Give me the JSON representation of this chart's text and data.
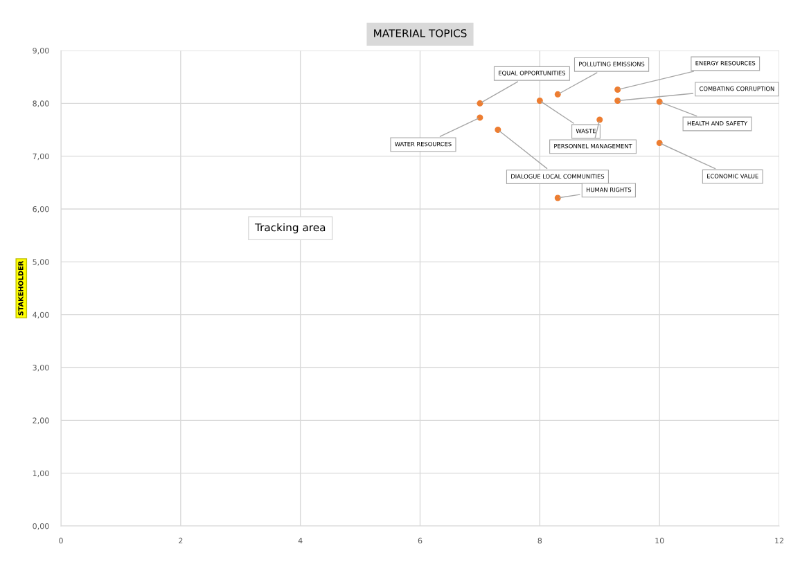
{
  "chart_data": {
    "type": "scatter",
    "title": "MATERIAL TOPICS",
    "ylabel": "STAKEHOLDER",
    "x": [
      7.0,
      7.0,
      7.3,
      8.0,
      8.3,
      9.0,
      8.3,
      9.3,
      9.3,
      10.0,
      10.0
    ],
    "series": [
      {
        "color": "#ed7d31",
        "values": [
          8.0,
          7.73,
          7.5,
          8.05,
          8.17,
          7.69,
          6.21,
          8.26,
          8.05,
          8.03,
          7.25
        ]
      }
    ],
    "marker": "circle",
    "grid": true,
    "legend": false,
    "xlim": [
      0,
      12
    ],
    "xticks": [
      0,
      2,
      4,
      6,
      8,
      10,
      12
    ],
    "ylim": [
      0,
      9
    ],
    "yticks": [
      {
        "value": 0,
        "label": "0,00"
      },
      {
        "value": 1,
        "label": "1,00"
      },
      {
        "value": 2,
        "label": "2,00"
      },
      {
        "value": 3,
        "label": "3,00"
      },
      {
        "value": 4,
        "label": "4,00"
      },
      {
        "value": 5,
        "label": "5,00"
      },
      {
        "value": 6,
        "label": "6,00"
      },
      {
        "value": 7,
        "label": "7,00"
      },
      {
        "value": 8,
        "label": "8,00"
      },
      {
        "value": 9,
        "label": "9,00"
      }
    ],
    "annotations": [
      {
        "text": "EQUAL OPPORTUNITIES",
        "x": 7.0,
        "y": 8.0
      },
      {
        "text": "WATER RESOURCES",
        "x": 7.0,
        "y": 7.73
      },
      {
        "text": "DIALOGUE LOCAL COMMUNITIES",
        "x": 7.3,
        "y": 7.5
      },
      {
        "text": "WASTE",
        "x": 8.0,
        "y": 8.05
      },
      {
        "text": "POLLUTING EMISSIONS",
        "x": 8.3,
        "y": 8.17
      },
      {
        "text": "PERSONNEL MANAGEMENT",
        "x": 9.0,
        "y": 7.69
      },
      {
        "text": "HUMAN RIGHTS",
        "x": 8.3,
        "y": 6.21
      },
      {
        "text": "ENERGY RESOURCES",
        "x": 9.3,
        "y": 8.26
      },
      {
        "text": "COMBATING CORRUPTION",
        "x": 9.3,
        "y": 8.05
      },
      {
        "text": "HEALTH AND SAFETY",
        "x": 10.0,
        "y": 8.03
      },
      {
        "text": "ECONOMIC VALUE",
        "x": 10.0,
        "y": 7.25
      },
      "Tracking area"
    ]
  }
}
